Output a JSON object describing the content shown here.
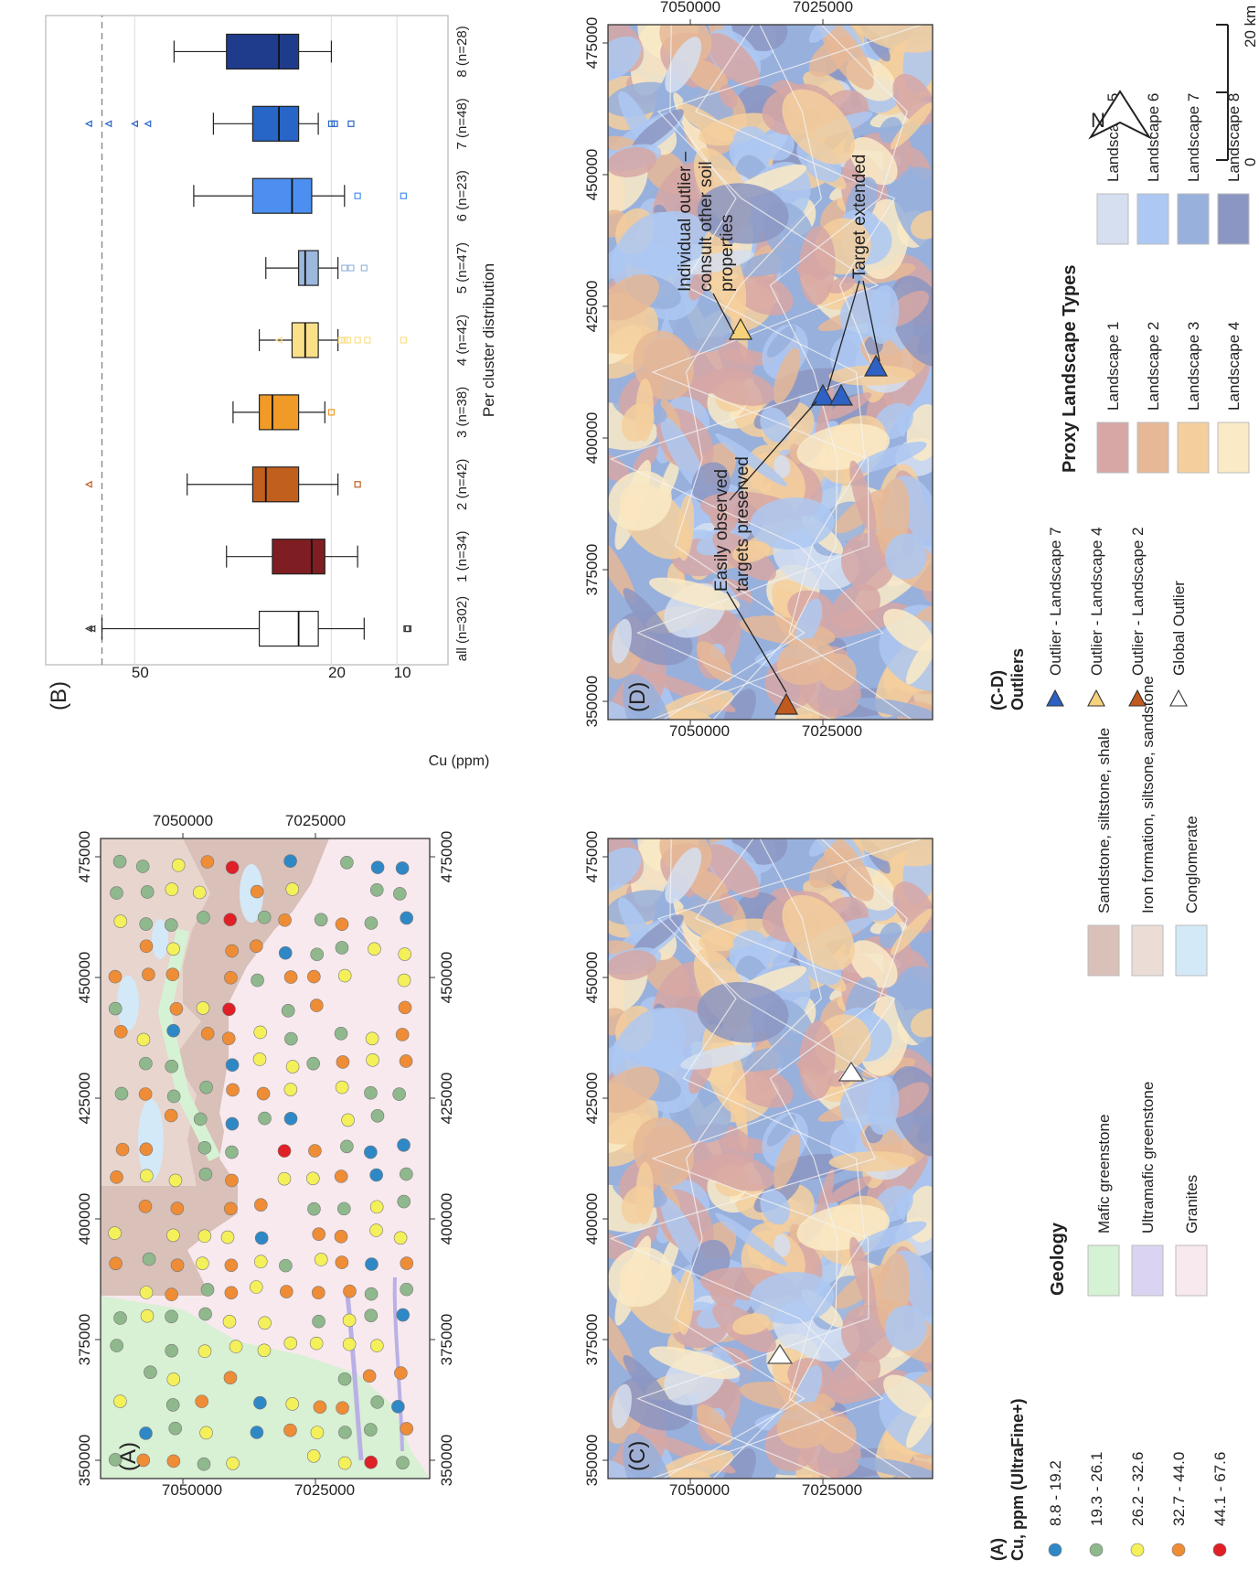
{
  "panel_labels": {
    "a": "(A)",
    "b": "(B)",
    "c": "(C)",
    "d": "(D)"
  },
  "map_ticks": {
    "easting": [
      "350000",
      "375000",
      "400000",
      "425000",
      "450000",
      "475000"
    ],
    "northing": [
      "7050000",
      "7025000"
    ]
  },
  "geology_legend": {
    "title": "Geology",
    "items": [
      {
        "label": "Mafic greenstone",
        "color": "#d6f2d4"
      },
      {
        "label": "Ultramafic greenstone",
        "color": "#dad4f2"
      },
      {
        "label": "Granites",
        "color": "#f7e9ee"
      },
      {
        "label": "Sandstone, siltstone, shale",
        "color": "#d9c0b8"
      },
      {
        "label": "Iron formation, siltsone, sandstone",
        "color": "#ebdcd6"
      },
      {
        "label": "Conglomerate",
        "color": "#d3e9f7"
      }
    ]
  },
  "cu_legend": {
    "title_a": "(A)",
    "title_b": "Cu, ppm (UltraFine+)",
    "items": [
      {
        "label": "8.8 - 19.2",
        "color": "#2f88c6"
      },
      {
        "label": "19.3 - 26.1",
        "color": "#8fb88d"
      },
      {
        "label": "26.2 - 32.6",
        "color": "#f4f05a"
      },
      {
        "label": "32.7 - 44.0",
        "color": "#ef8c36"
      },
      {
        "label": "44.1 - 67.6",
        "color": "#e01f26"
      }
    ]
  },
  "outlier_legend": {
    "title_a": "(C-D)",
    "title_b": "Outliers",
    "items": [
      {
        "label": "Outlier - Landscape 7",
        "color": "#2d62c4"
      },
      {
        "label": "Outlier - Landscape 4",
        "color": "#f6d27a"
      },
      {
        "label": "Outlier - Landscape 2",
        "color": "#c05a1e"
      },
      {
        "label": "Global Outlier",
        "color": "#ffffff"
      }
    ]
  },
  "landscape_legend": {
    "title": "Proxy Landscape Types",
    "items": [
      {
        "label": "Landscape 1",
        "color": "#d6a7a5"
      },
      {
        "label": "Landscape 2",
        "color": "#e6b896"
      },
      {
        "label": "Landscape 3",
        "color": "#f4cf9c"
      },
      {
        "label": "Landscape 4",
        "color": "#faeac6"
      },
      {
        "label": "Landscape 5",
        "color": "#d5dff0"
      },
      {
        "label": "Landscape 6",
        "color": "#adc8f2"
      },
      {
        "label": "Landscape 7",
        "color": "#98b0dc"
      },
      {
        "label": "Landscape 8",
        "color": "#8c96c2"
      }
    ]
  },
  "scale_bar": {
    "north": "N",
    "zero": "0",
    "distance": "20 km"
  },
  "annotations": {
    "easily_1": "Easily observed",
    "easily_2": "targets preserved",
    "individual_1": "Individual outlier –",
    "individual_2": "consult other soil",
    "individual_3": "properties",
    "target_extended": "Target extended"
  },
  "chart_data": {
    "type": "box",
    "xlabel": "Per cluster distribution",
    "ylabel": "Cu (ppm)",
    "ylim": [
      5,
      58
    ],
    "y_ticks": [
      10,
      20,
      50
    ],
    "reference_line": 55,
    "categories": [
      "all (n=302)",
      "1 (n=34)",
      "2 (n=42)",
      "3 (n=38)",
      "4 (n=42)",
      "5 (n=47)",
      "6 (n=23)",
      "7 (n=48)",
      "8 (n=28)"
    ],
    "boxes": [
      {
        "name": "all (n=302)",
        "color": "#ffffff",
        "min": 15,
        "q1": 22,
        "median": 25,
        "q3": 31,
        "max": 55,
        "outliers_low": [
          8.5,
          8.3
        ],
        "outliers_high": [
          56.5,
          57
        ]
      },
      {
        "name": "1 (n=34)",
        "color": "#7e1e22",
        "min": 16,
        "q1": 21,
        "median": 23,
        "q3": 29,
        "max": 36,
        "outliers_low": [],
        "outliers_high": []
      },
      {
        "name": "2 (n=42)",
        "color": "#c15f1d",
        "min": 19,
        "q1": 25,
        "median": 30,
        "q3": 32,
        "max": 42,
        "outliers_low": [
          16
        ],
        "outliers_high": [
          57
        ]
      },
      {
        "name": "3 (n=38)",
        "color": "#f09a27",
        "min": 21,
        "q1": 25,
        "median": 29,
        "q3": 31,
        "max": 35,
        "outliers_low": [
          20
        ],
        "outliers_high": []
      },
      {
        "name": "4 (n=42)",
        "color": "#fbe08a",
        "min": 19,
        "q1": 22,
        "median": 24,
        "q3": 26,
        "max": 31,
        "outliers_low": [
          18.5,
          18,
          17.5,
          16,
          14.5,
          9
        ],
        "outliers_high": [
          28
        ]
      },
      {
        "name": "5 (n=47)",
        "color": "#9db8dd",
        "min": 19,
        "q1": 22,
        "median": 24,
        "q3": 25,
        "max": 30,
        "outliers_low": [
          18,
          17,
          15
        ],
        "outliers_high": []
      },
      {
        "name": "6 (n=23)",
        "color": "#4c8ff0",
        "min": 18,
        "q1": 23,
        "median": 26,
        "q3": 32,
        "max": 41,
        "outliers_low": [
          16,
          9
        ],
        "outliers_high": []
      },
      {
        "name": "7 (n=48)",
        "color": "#2765c6",
        "min": 22,
        "q1": 25,
        "median": 28,
        "q3": 32,
        "max": 38,
        "outliers_low": [
          20,
          19.5,
          17
        ],
        "outliers_high": [
          48,
          50,
          54,
          57
        ]
      },
      {
        "name": "8 (n=28)",
        "color": "#1f3c8c",
        "min": 20,
        "q1": 25,
        "median": 28,
        "q3": 36,
        "max": 44,
        "outliers_low": [],
        "outliers_high": []
      }
    ]
  }
}
